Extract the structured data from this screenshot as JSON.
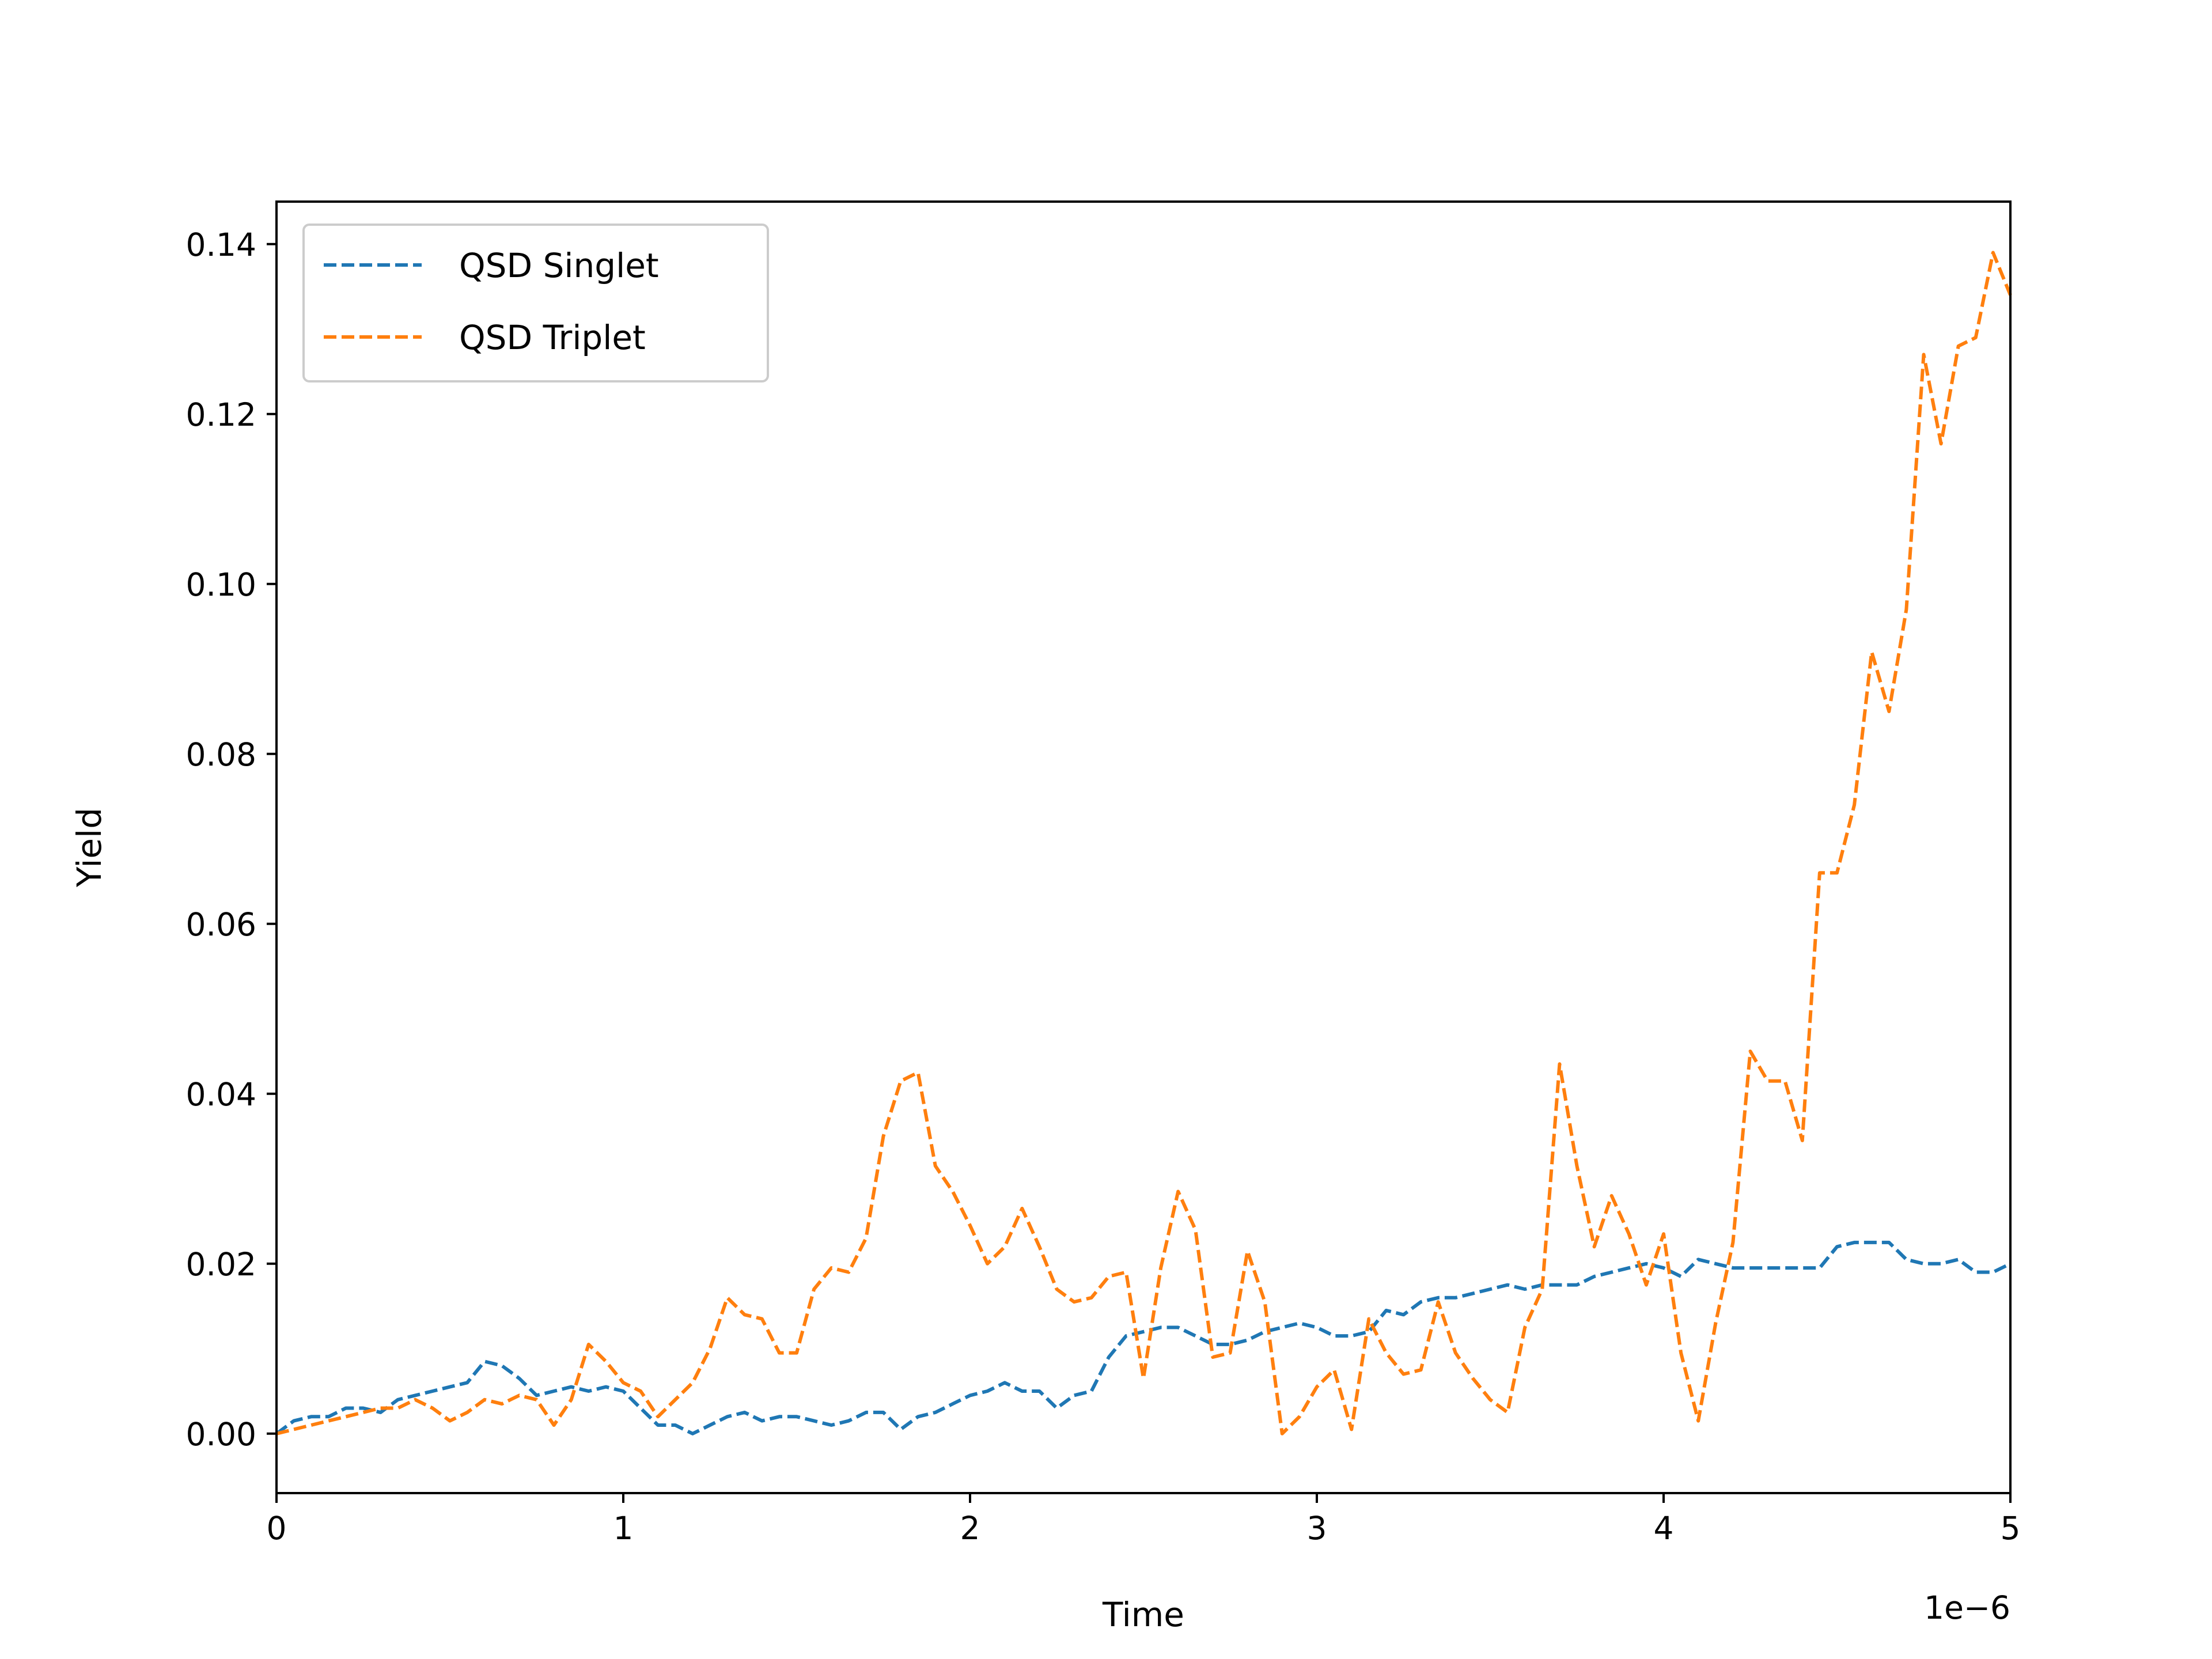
{
  "chart_data": {
    "type": "line",
    "xlabel": "Time",
    "ylabel": "Yield",
    "x_offset_label": "1e−6",
    "xlim": [
      0,
      5
    ],
    "ylim": [
      -0.007,
      0.145
    ],
    "x_ticks": [
      0,
      1,
      2,
      3,
      4,
      5
    ],
    "x_tick_labels": [
      "0",
      "1",
      "2",
      "3",
      "4",
      "5"
    ],
    "y_ticks": [
      0.0,
      0.02,
      0.04,
      0.06,
      0.08,
      0.1,
      0.12,
      0.14
    ],
    "y_tick_labels": [
      "0.00",
      "0.02",
      "0.04",
      "0.06",
      "0.08",
      "0.10",
      "0.12",
      "0.14"
    ],
    "grid": false,
    "legend_position": "top-left",
    "line_style": "dashed",
    "series": [
      {
        "name": "QSD Singlet",
        "color": "#1f77b4",
        "x": [
          0,
          0.05,
          0.1,
          0.15,
          0.2,
          0.25,
          0.3,
          0.35,
          0.4,
          0.45,
          0.5,
          0.55,
          0.6,
          0.65,
          0.7,
          0.75,
          0.8,
          0.85,
          0.9,
          0.95,
          1.0,
          1.05,
          1.1,
          1.15,
          1.2,
          1.25,
          1.3,
          1.35,
          1.4,
          1.45,
          1.5,
          1.55,
          1.6,
          1.65,
          1.7,
          1.75,
          1.8,
          1.85,
          1.9,
          1.95,
          2.0,
          2.05,
          2.1,
          2.15,
          2.2,
          2.25,
          2.3,
          2.35,
          2.4,
          2.45,
          2.5,
          2.55,
          2.6,
          2.65,
          2.7,
          2.75,
          2.8,
          2.85,
          2.9,
          2.95,
          3.0,
          3.05,
          3.1,
          3.15,
          3.2,
          3.25,
          3.3,
          3.35,
          3.4,
          3.45,
          3.5,
          3.55,
          3.6,
          3.65,
          3.7,
          3.75,
          3.8,
          3.85,
          3.9,
          3.95,
          4.0,
          4.05,
          4.1,
          4.15,
          4.2,
          4.25,
          4.3,
          4.35,
          4.4,
          4.45,
          4.5,
          4.55,
          4.6,
          4.65,
          4.7,
          4.75,
          4.8,
          4.85,
          4.9,
          4.95,
          5.0
        ],
        "y": [
          0.0,
          0.0015,
          0.002,
          0.002,
          0.003,
          0.003,
          0.0025,
          0.004,
          0.0045,
          0.005,
          0.0055,
          0.006,
          0.0085,
          0.008,
          0.0065,
          0.0045,
          0.005,
          0.0055,
          0.005,
          0.0055,
          0.005,
          0.003,
          0.001,
          0.001,
          0.0,
          0.001,
          0.002,
          0.0025,
          0.0015,
          0.002,
          0.002,
          0.0015,
          0.001,
          0.0015,
          0.0025,
          0.0025,
          0.0005,
          0.002,
          0.0025,
          0.0035,
          0.0045,
          0.005,
          0.006,
          0.005,
          0.005,
          0.003,
          0.0045,
          0.005,
          0.009,
          0.0115,
          0.012,
          0.0125,
          0.0125,
          0.0115,
          0.0105,
          0.0105,
          0.011,
          0.012,
          0.0125,
          0.013,
          0.0125,
          0.0115,
          0.0115,
          0.012,
          0.0145,
          0.014,
          0.0155,
          0.016,
          0.016,
          0.0165,
          0.017,
          0.0175,
          0.017,
          0.0175,
          0.0175,
          0.0175,
          0.0185,
          0.019,
          0.0195,
          0.02,
          0.0195,
          0.0185,
          0.0205,
          0.02,
          0.0195,
          0.0195,
          0.0195,
          0.0195,
          0.0195,
          0.0195,
          0.022,
          0.0225,
          0.0225,
          0.0225,
          0.0205,
          0.02,
          0.02,
          0.0205,
          0.019,
          0.019,
          0.02
        ]
      },
      {
        "name": "QSD Triplet",
        "color": "#ff7f0e",
        "x": [
          0,
          0.05,
          0.1,
          0.15,
          0.2,
          0.25,
          0.3,
          0.35,
          0.4,
          0.45,
          0.5,
          0.55,
          0.6,
          0.65,
          0.7,
          0.75,
          0.8,
          0.85,
          0.9,
          0.95,
          1.0,
          1.05,
          1.1,
          1.15,
          1.2,
          1.25,
          1.3,
          1.35,
          1.4,
          1.45,
          1.5,
          1.55,
          1.6,
          1.65,
          1.7,
          1.75,
          1.8,
          1.85,
          1.9,
          1.95,
          2.0,
          2.05,
          2.1,
          2.15,
          2.2,
          2.25,
          2.3,
          2.35,
          2.4,
          2.45,
          2.5,
          2.55,
          2.6,
          2.65,
          2.7,
          2.75,
          2.8,
          2.85,
          2.9,
          2.95,
          3.0,
          3.05,
          3.1,
          3.15,
          3.2,
          3.25,
          3.3,
          3.35,
          3.4,
          3.45,
          3.5,
          3.55,
          3.6,
          3.65,
          3.7,
          3.75,
          3.8,
          3.85,
          3.9,
          3.95,
          4.0,
          4.05,
          4.1,
          4.15,
          4.2,
          4.25,
          4.3,
          4.35,
          4.4,
          4.45,
          4.5,
          4.55,
          4.6,
          4.65,
          4.7,
          4.75,
          4.8,
          4.85,
          4.9,
          4.95,
          5.0
        ],
        "y": [
          0.0,
          0.0005,
          0.001,
          0.0015,
          0.002,
          0.0025,
          0.003,
          0.003,
          0.004,
          0.003,
          0.0015,
          0.0025,
          0.004,
          0.0035,
          0.0045,
          0.004,
          0.001,
          0.004,
          0.0105,
          0.0085,
          0.006,
          0.005,
          0.002,
          0.004,
          0.006,
          0.01,
          0.016,
          0.014,
          0.0135,
          0.0095,
          0.0095,
          0.017,
          0.0195,
          0.019,
          0.023,
          0.035,
          0.0415,
          0.0425,
          0.0315,
          0.0285,
          0.0245,
          0.02,
          0.022,
          0.0265,
          0.022,
          0.017,
          0.0155,
          0.016,
          0.0185,
          0.019,
          0.0065,
          0.0195,
          0.0285,
          0.024,
          0.009,
          0.0095,
          0.0215,
          0.0155,
          0.0,
          0.002,
          0.0055,
          0.0075,
          0.0005,
          0.0135,
          0.0095,
          0.007,
          0.0075,
          0.0155,
          0.0095,
          0.0065,
          0.004,
          0.0025,
          0.0125,
          0.017,
          0.0435,
          0.0315,
          0.022,
          0.028,
          0.0235,
          0.0175,
          0.0235,
          0.0095,
          0.0015,
          0.013,
          0.0225,
          0.045,
          0.0415,
          0.0415,
          0.0345,
          0.066,
          0.066,
          0.074,
          0.092,
          0.085,
          0.097,
          0.127,
          0.1165,
          0.128,
          0.129,
          0.139,
          0.134
        ]
      }
    ]
  }
}
